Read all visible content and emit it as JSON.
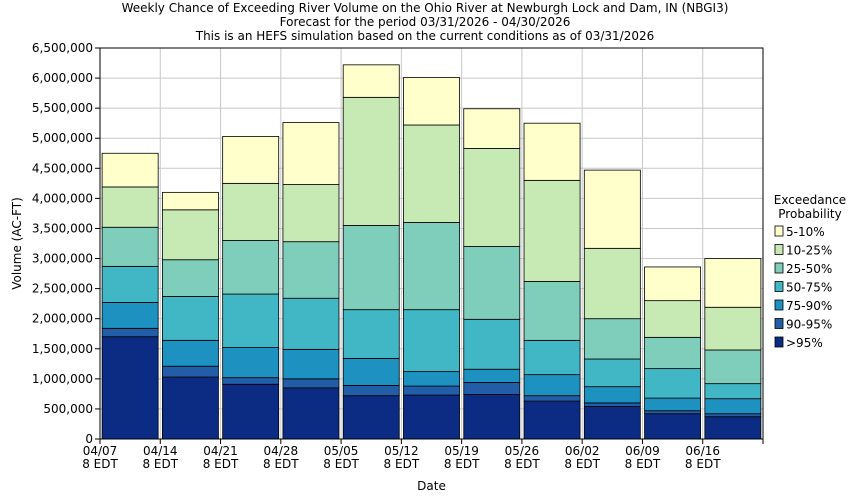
{
  "header": {
    "title_lines": [
      "Weekly Chance of Exceeding River Volume on the Ohio River at Newburgh Lock and Dam, IN (NBGI3)",
      "Forecast for the period 03/31/2026 - 04/30/2026",
      "This is an HEFS simulation based on the current conditions as of 03/31/2026"
    ]
  },
  "chart_data": {
    "type": "bar",
    "stacked": true,
    "xlabel": "Date",
    "ylabel": "Volume (AC-FT)",
    "ylim": [
      0,
      6500000
    ],
    "yticks": [
      {
        "value": 0,
        "label": "0"
      },
      {
        "value": 500000,
        "label": "500,000"
      },
      {
        "value": 1000000,
        "label": "1,000,000"
      },
      {
        "value": 1500000,
        "label": "1,500,000"
      },
      {
        "value": 2000000,
        "label": "2,000,000"
      },
      {
        "value": 2500000,
        "label": "2,500,000"
      },
      {
        "value": 3000000,
        "label": "3,000,000"
      },
      {
        "value": 3500000,
        "label": "3,500,000"
      },
      {
        "value": 4000000,
        "label": "4,000,000"
      },
      {
        "value": 4500000,
        "label": "4,500,000"
      },
      {
        "value": 5000000,
        "label": "5,000,000"
      },
      {
        "value": 5500000,
        "label": "5,500,000"
      },
      {
        "value": 6000000,
        "label": "6,000,000"
      },
      {
        "value": 6500000,
        "label": "6,500,000"
      }
    ],
    "xticks": [
      {
        "line1": "04/07",
        "line2": "8 EDT"
      },
      {
        "line1": "04/14",
        "line2": "8 EDT"
      },
      {
        "line1": "04/21",
        "line2": "8 EDT"
      },
      {
        "line1": "04/28",
        "line2": "8 EDT"
      },
      {
        "line1": "05/05",
        "line2": "8 EDT"
      },
      {
        "line1": "05/12",
        "line2": "8 EDT"
      },
      {
        "line1": "05/19",
        "line2": "8 EDT"
      },
      {
        "line1": "05/26",
        "line2": "8 EDT"
      },
      {
        "line1": "06/02",
        "line2": "8 EDT"
      },
      {
        "line1": "06/09",
        "line2": "8 EDT"
      },
      {
        "line1": "06/16",
        "line2": "8 EDT"
      }
    ],
    "grid": true,
    "legend": {
      "title_lines": [
        "Exceedance",
        "Probability"
      ],
      "position": "right"
    },
    "series": [
      {
        "name": "5-10%",
        "color": "#ffffcc"
      },
      {
        "name": "10-25%",
        "color": "#c7e9b4"
      },
      {
        "name": "25-50%",
        "color": "#7fcdbb"
      },
      {
        "name": "50-75%",
        "color": "#41b6c4"
      },
      {
        "name": "75-90%",
        "color": "#1d91c0"
      },
      {
        "name": "90-95%",
        "color": "#225ea8"
      },
      {
        "name": ">95%",
        "color": "#0c2c84"
      }
    ],
    "bar_tops": [
      [
        4750000,
        4190000,
        3520000,
        2870000,
        2270000,
        1840000,
        1700000
      ],
      [
        4100000,
        3810000,
        2980000,
        2370000,
        1640000,
        1210000,
        1030000
      ],
      [
        5030000,
        4250000,
        3300000,
        2410000,
        1520000,
        1020000,
        910000
      ],
      [
        5260000,
        4230000,
        3280000,
        2340000,
        1490000,
        1000000,
        850000
      ],
      [
        6220000,
        5680000,
        3550000,
        2150000,
        1340000,
        890000,
        720000
      ],
      [
        6010000,
        5220000,
        3600000,
        2150000,
        1120000,
        880000,
        730000
      ],
      [
        5490000,
        4830000,
        3200000,
        1990000,
        1160000,
        940000,
        740000
      ],
      [
        5250000,
        4300000,
        2620000,
        1640000,
        1070000,
        720000,
        630000
      ],
      [
        4470000,
        3170000,
        2000000,
        1330000,
        870000,
        600000,
        540000
      ],
      [
        2860000,
        2300000,
        1690000,
        1170000,
        680000,
        470000,
        420000
      ],
      [
        3000000,
        2190000,
        1480000,
        920000,
        670000,
        420000,
        370000
      ]
    ]
  }
}
